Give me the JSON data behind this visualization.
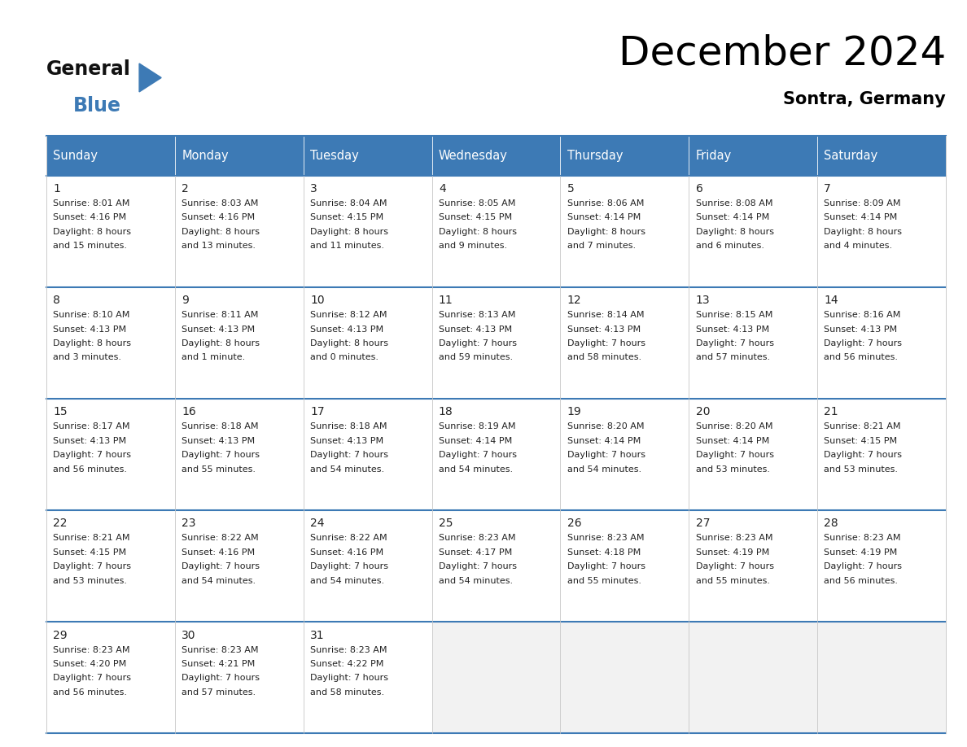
{
  "title": "December 2024",
  "subtitle": "Sontra, Germany",
  "header_color": "#3d7ab5",
  "header_text_color": "#ffffff",
  "bg_color_white": "#ffffff",
  "bg_color_gray": "#f2f2f2",
  "text_color": "#222222",
  "border_color_blue": "#3d7ab5",
  "border_color_gray": "#cccccc",
  "days_of_week": [
    "Sunday",
    "Monday",
    "Tuesday",
    "Wednesday",
    "Thursday",
    "Friday",
    "Saturday"
  ],
  "calendar_data": [
    [
      {
        "day": "1",
        "sunrise": "8:01 AM",
        "sunset": "4:16 PM",
        "dl1": "Daylight: 8 hours",
        "dl2": "and 15 minutes."
      },
      {
        "day": "2",
        "sunrise": "8:03 AM",
        "sunset": "4:16 PM",
        "dl1": "Daylight: 8 hours",
        "dl2": "and 13 minutes."
      },
      {
        "day": "3",
        "sunrise": "8:04 AM",
        "sunset": "4:15 PM",
        "dl1": "Daylight: 8 hours",
        "dl2": "and 11 minutes."
      },
      {
        "day": "4",
        "sunrise": "8:05 AM",
        "sunset": "4:15 PM",
        "dl1": "Daylight: 8 hours",
        "dl2": "and 9 minutes."
      },
      {
        "day": "5",
        "sunrise": "8:06 AM",
        "sunset": "4:14 PM",
        "dl1": "Daylight: 8 hours",
        "dl2": "and 7 minutes."
      },
      {
        "day": "6",
        "sunrise": "8:08 AM",
        "sunset": "4:14 PM",
        "dl1": "Daylight: 8 hours",
        "dl2": "and 6 minutes."
      },
      {
        "day": "7",
        "sunrise": "8:09 AM",
        "sunset": "4:14 PM",
        "dl1": "Daylight: 8 hours",
        "dl2": "and 4 minutes."
      }
    ],
    [
      {
        "day": "8",
        "sunrise": "8:10 AM",
        "sunset": "4:13 PM",
        "dl1": "Daylight: 8 hours",
        "dl2": "and 3 minutes."
      },
      {
        "day": "9",
        "sunrise": "8:11 AM",
        "sunset": "4:13 PM",
        "dl1": "Daylight: 8 hours",
        "dl2": "and 1 minute."
      },
      {
        "day": "10",
        "sunrise": "8:12 AM",
        "sunset": "4:13 PM",
        "dl1": "Daylight: 8 hours",
        "dl2": "and 0 minutes."
      },
      {
        "day": "11",
        "sunrise": "8:13 AM",
        "sunset": "4:13 PM",
        "dl1": "Daylight: 7 hours",
        "dl2": "and 59 minutes."
      },
      {
        "day": "12",
        "sunrise": "8:14 AM",
        "sunset": "4:13 PM",
        "dl1": "Daylight: 7 hours",
        "dl2": "and 58 minutes."
      },
      {
        "day": "13",
        "sunrise": "8:15 AM",
        "sunset": "4:13 PM",
        "dl1": "Daylight: 7 hours",
        "dl2": "and 57 minutes."
      },
      {
        "day": "14",
        "sunrise": "8:16 AM",
        "sunset": "4:13 PM",
        "dl1": "Daylight: 7 hours",
        "dl2": "and 56 minutes."
      }
    ],
    [
      {
        "day": "15",
        "sunrise": "8:17 AM",
        "sunset": "4:13 PM",
        "dl1": "Daylight: 7 hours",
        "dl2": "and 56 minutes."
      },
      {
        "day": "16",
        "sunrise": "8:18 AM",
        "sunset": "4:13 PM",
        "dl1": "Daylight: 7 hours",
        "dl2": "and 55 minutes."
      },
      {
        "day": "17",
        "sunrise": "8:18 AM",
        "sunset": "4:13 PM",
        "dl1": "Daylight: 7 hours",
        "dl2": "and 54 minutes."
      },
      {
        "day": "18",
        "sunrise": "8:19 AM",
        "sunset": "4:14 PM",
        "dl1": "Daylight: 7 hours",
        "dl2": "and 54 minutes."
      },
      {
        "day": "19",
        "sunrise": "8:20 AM",
        "sunset": "4:14 PM",
        "dl1": "Daylight: 7 hours",
        "dl2": "and 54 minutes."
      },
      {
        "day": "20",
        "sunrise": "8:20 AM",
        "sunset": "4:14 PM",
        "dl1": "Daylight: 7 hours",
        "dl2": "and 53 minutes."
      },
      {
        "day": "21",
        "sunrise": "8:21 AM",
        "sunset": "4:15 PM",
        "dl1": "Daylight: 7 hours",
        "dl2": "and 53 minutes."
      }
    ],
    [
      {
        "day": "22",
        "sunrise": "8:21 AM",
        "sunset": "4:15 PM",
        "dl1": "Daylight: 7 hours",
        "dl2": "and 53 minutes."
      },
      {
        "day": "23",
        "sunrise": "8:22 AM",
        "sunset": "4:16 PM",
        "dl1": "Daylight: 7 hours",
        "dl2": "and 54 minutes."
      },
      {
        "day": "24",
        "sunrise": "8:22 AM",
        "sunset": "4:16 PM",
        "dl1": "Daylight: 7 hours",
        "dl2": "and 54 minutes."
      },
      {
        "day": "25",
        "sunrise": "8:23 AM",
        "sunset": "4:17 PM",
        "dl1": "Daylight: 7 hours",
        "dl2": "and 54 minutes."
      },
      {
        "day": "26",
        "sunrise": "8:23 AM",
        "sunset": "4:18 PM",
        "dl1": "Daylight: 7 hours",
        "dl2": "and 55 minutes."
      },
      {
        "day": "27",
        "sunrise": "8:23 AM",
        "sunset": "4:19 PM",
        "dl1": "Daylight: 7 hours",
        "dl2": "and 55 minutes."
      },
      {
        "day": "28",
        "sunrise": "8:23 AM",
        "sunset": "4:19 PM",
        "dl1": "Daylight: 7 hours",
        "dl2": "and 56 minutes."
      }
    ],
    [
      {
        "day": "29",
        "sunrise": "8:23 AM",
        "sunset": "4:20 PM",
        "dl1": "Daylight: 7 hours",
        "dl2": "and 56 minutes."
      },
      {
        "day": "30",
        "sunrise": "8:23 AM",
        "sunset": "4:21 PM",
        "dl1": "Daylight: 7 hours",
        "dl2": "and 57 minutes."
      },
      {
        "day": "31",
        "sunrise": "8:23 AM",
        "sunset": "4:22 PM",
        "dl1": "Daylight: 7 hours",
        "dl2": "and 58 minutes."
      },
      null,
      null,
      null,
      null
    ]
  ],
  "n_rows": 5,
  "n_cols": 7,
  "logo_general_color": "#111111",
  "logo_blue_color": "#3d7ab5",
  "logo_triangle_color": "#3d7ab5",
  "title_fontsize": 36,
  "subtitle_fontsize": 15,
  "header_fontsize": 10.5,
  "day_num_fontsize": 10,
  "cell_text_fontsize": 8
}
